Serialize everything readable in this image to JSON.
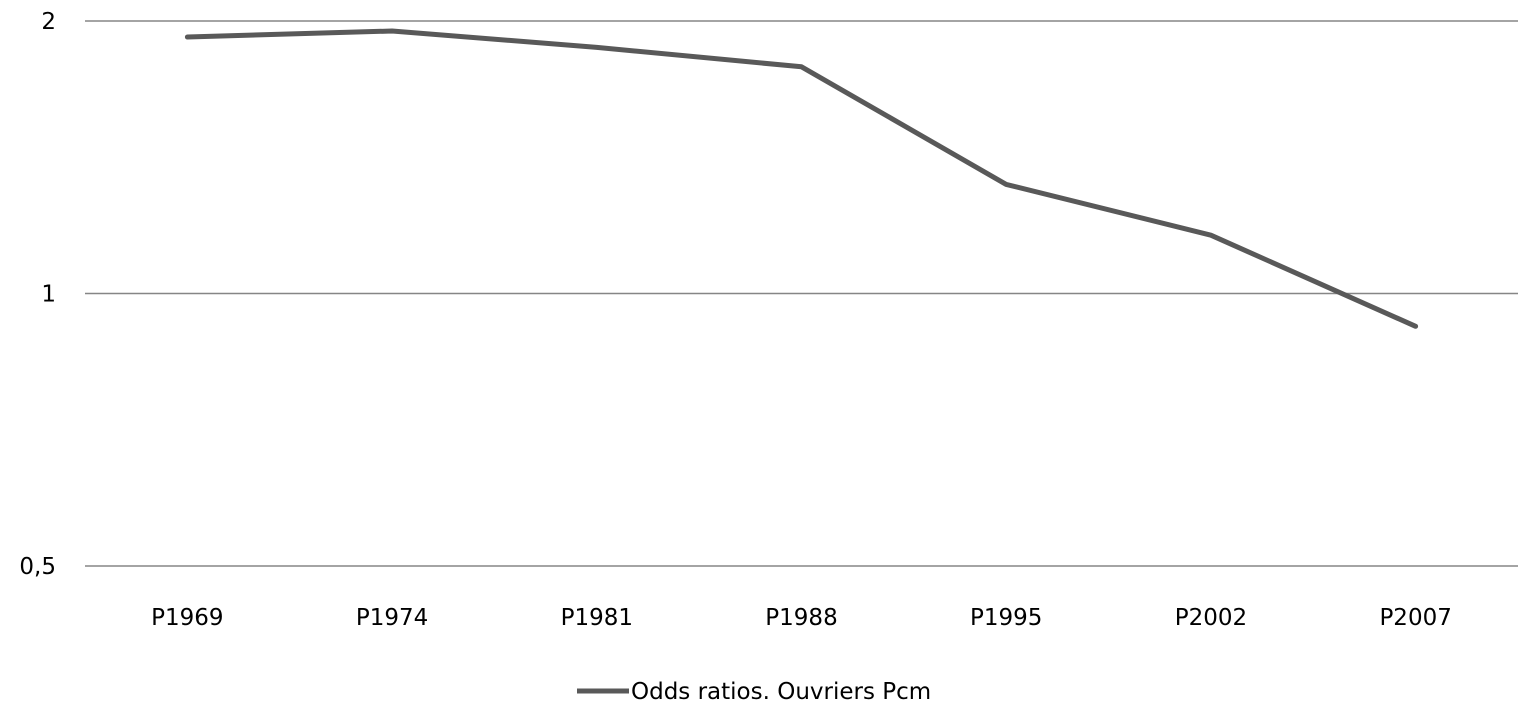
{
  "chart_data": {
    "type": "line",
    "scale": "log",
    "categories": [
      "P1969",
      "P1974",
      "P1981",
      "P1988",
      "P1995",
      "P2002",
      "P2007"
    ],
    "series": [
      {
        "name": "Odds ratios. Ouvriers Pcm",
        "color": "#595959",
        "values": [
          1.92,
          1.95,
          1.87,
          1.78,
          1.32,
          1.16,
          0.92
        ]
      }
    ],
    "yticks": [
      {
        "value": 2,
        "label": "2"
      },
      {
        "value": 1,
        "label": "1"
      },
      {
        "value": 0.5,
        "label": "0,5"
      }
    ],
    "ylim": [
      0.5,
      2
    ],
    "grid": true,
    "legend": "bottom"
  }
}
